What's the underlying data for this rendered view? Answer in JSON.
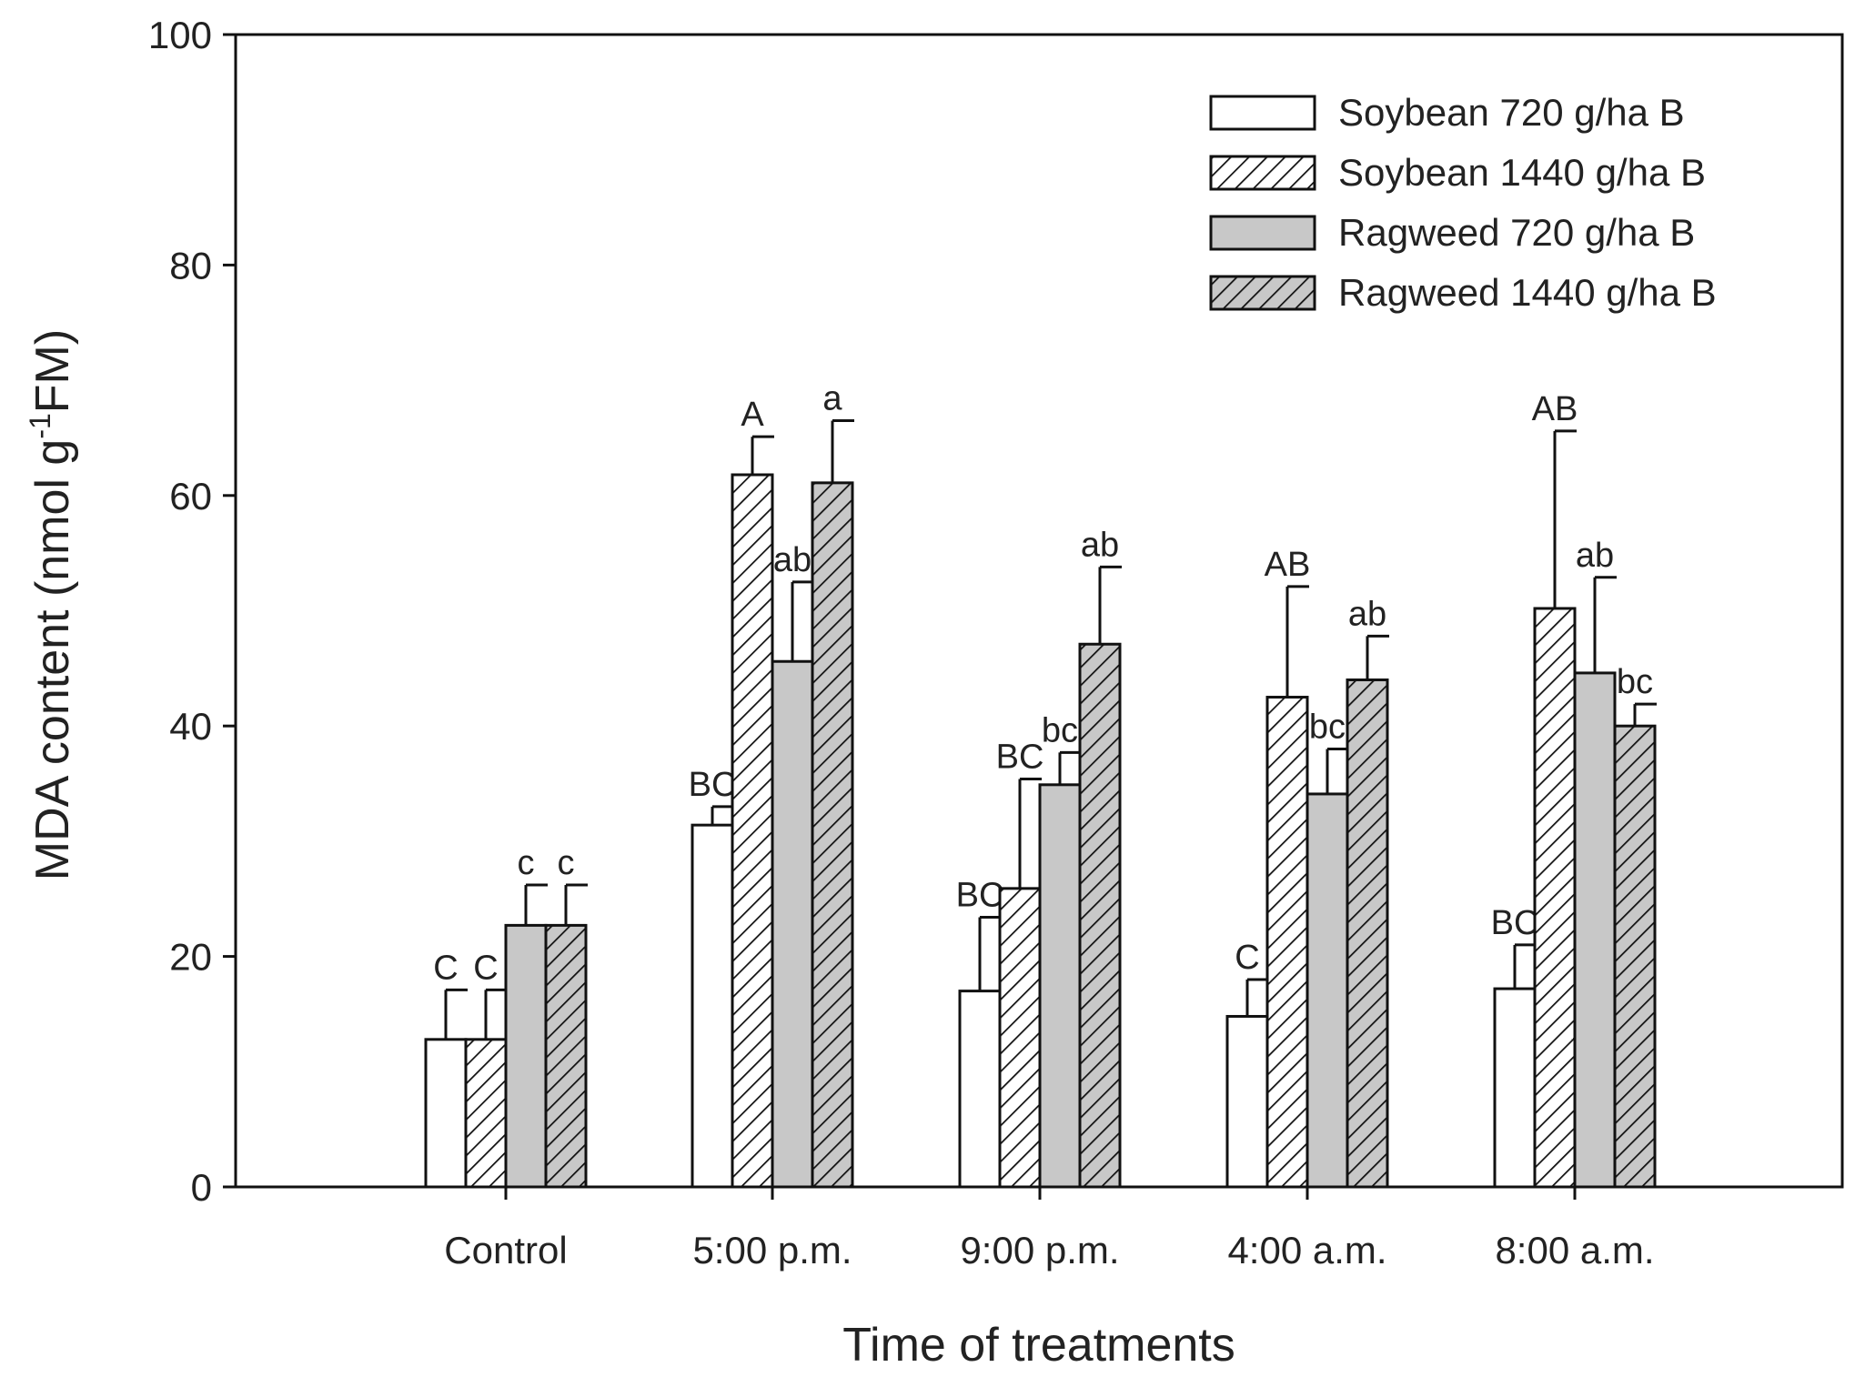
{
  "chart_data": {
    "type": "bar",
    "title": "",
    "xlabel": "Time of treatments",
    "ylabel_main": "MDA content (nmol g",
    "ylabel_sup": "-1",
    "ylabel_tail": "FM)",
    "ylim": [
      0,
      100
    ],
    "yticks": [
      "0",
      "20",
      "40",
      "60",
      "80",
      "100"
    ],
    "grid": false,
    "legend_position": "top-right",
    "categories": [
      "Control",
      "5:00 p.m.",
      "9:00 p.m.",
      "4:00 a.m.",
      "8:00 a.m."
    ],
    "series": [
      {
        "name": "Soybean 720 g/ha B",
        "fill": "#ffffff",
        "hatch": false,
        "values": [
          12.8,
          31.4,
          17.0,
          14.8,
          17.2
        ],
        "errors": [
          4.3,
          1.6,
          6.4,
          3.2,
          3.8
        ],
        "labels": [
          "C",
          "BC",
          "BC",
          "C",
          "BC"
        ]
      },
      {
        "name": "Soybean 1440 g/ha B",
        "fill": "#ffffff",
        "hatch": true,
        "values": [
          12.8,
          61.8,
          25.9,
          42.5,
          50.2
        ],
        "errors": [
          4.3,
          3.3,
          9.5,
          9.6,
          15.4
        ],
        "labels": [
          "C",
          "A",
          "BC",
          "AB",
          "AB"
        ]
      },
      {
        "name": "Ragweed 720 g/ha B",
        "fill": "#c8c8c8",
        "hatch": false,
        "values": [
          22.7,
          45.6,
          34.9,
          34.1,
          44.6
        ],
        "errors": [
          3.5,
          6.9,
          2.8,
          3.9,
          8.3
        ],
        "labels": [
          "c",
          "ab",
          "bc",
          "bc",
          "ab"
        ]
      },
      {
        "name": "Ragweed 1440 g/ha B",
        "fill": "#c8c8c8",
        "hatch": true,
        "values": [
          22.7,
          61.1,
          47.1,
          44.0,
          40.0
        ],
        "errors": [
          3.5,
          5.4,
          6.7,
          3.8,
          1.9
        ],
        "labels": [
          "c",
          "a",
          "ab",
          "ab",
          "bc"
        ]
      }
    ]
  }
}
